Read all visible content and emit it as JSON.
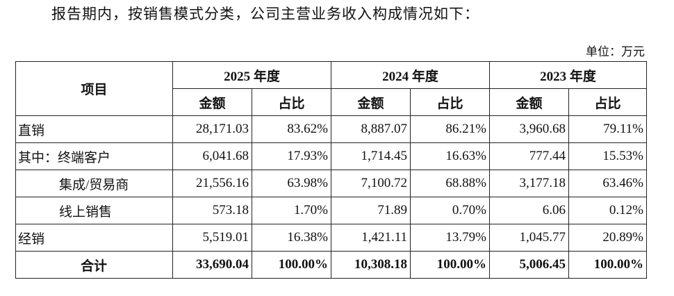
{
  "intro": "报告期内，按销售模式分类，公司主营业务收入构成情况如下：",
  "unit": "单位：万元",
  "table": {
    "item_header": "项目",
    "years": [
      "2025 年度",
      "2024 年度",
      "2023 年度"
    ],
    "subheaders": [
      "金额",
      "占比"
    ],
    "rows": [
      [
        "直销",
        "28,171.03",
        "83.62%",
        "8,887.07",
        "86.21%",
        "3,960.68",
        "79.11%"
      ],
      [
        "其中：终端客户",
        "6,041.68",
        "17.93%",
        "1,714.45",
        "16.63%",
        "777.44",
        "15.53%"
      ],
      [
        "集成/贸易商",
        "21,556.16",
        "63.98%",
        "7,100.72",
        "68.88%",
        "3,177.18",
        "63.46%"
      ],
      [
        "线上销售",
        "573.18",
        "1.70%",
        "71.89",
        "0.70%",
        "6.06",
        "0.12%"
      ],
      [
        "经销",
        "5,519.01",
        "16.38%",
        "1,421.11",
        "13.79%",
        "1,045.77",
        "20.89%"
      ],
      [
        "合计",
        "33,690.04",
        "100.00%",
        "10,308.18",
        "100.00%",
        "5,006.45",
        "100.00%"
      ]
    ]
  }
}
